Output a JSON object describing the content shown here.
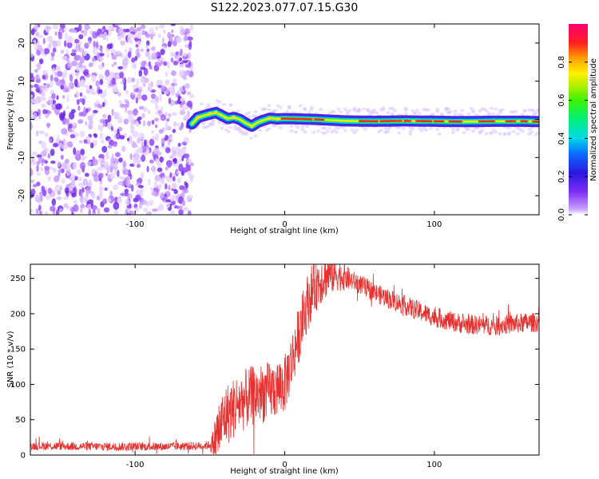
{
  "title": "S122.2023.077.07.15.G30",
  "spectrogram": {
    "xlabel": "Height of straight line (km)",
    "ylabel": "Frequency (Hz)",
    "xlim": [
      -170,
      170
    ],
    "ylim": [
      -25,
      25
    ],
    "xticks": [
      -100,
      0,
      100
    ],
    "yticks": [
      -20,
      -10,
      0,
      10,
      20
    ],
    "noise_region_x": [
      -170,
      -62
    ],
    "colorbar": {
      "label": "Normalized spectral amplitude",
      "range": [
        0.0,
        1.0
      ],
      "ticks": [
        0.0,
        0.2,
        0.4,
        0.6,
        0.8
      ]
    }
  },
  "chart_data": [
    {
      "type": "heatmap",
      "title": "S122.2023.077.07.15.G30",
      "xlabel": "Height of straight line (km)",
      "ylabel": "Frequency (Hz)",
      "xlim": [
        -170,
        170
      ],
      "ylim": [
        -25,
        25
      ],
      "colorbar_label": "Normalized spectral amplitude",
      "colorbar_range": [
        0.0,
        1.0
      ],
      "ridge_x": [
        -62,
        -58,
        -52,
        -46,
        -42,
        -38,
        -34,
        -30,
        -26,
        -22,
        -18,
        -14,
        -10,
        -5,
        0,
        10,
        20,
        30,
        40,
        60,
        80,
        100,
        120,
        140,
        160,
        170
      ],
      "ridge_y": [
        -1.2,
        0.5,
        1.2,
        1.8,
        1.0,
        0.2,
        0.5,
        0.0,
        -1.0,
        -1.8,
        -0.8,
        -0.2,
        0.3,
        0.1,
        0.2,
        0.1,
        0.0,
        -0.2,
        -0.4,
        -0.5,
        -0.4,
        -0.5,
        -0.6,
        -0.5,
        -0.5,
        -0.6
      ]
    },
    {
      "type": "line",
      "xlabel": "Height of straight line (km)",
      "ylabel": "SNR (10 * v/v)",
      "xlim": [
        -170,
        170
      ],
      "ylim": [
        0,
        270
      ],
      "xticks": [
        -100,
        0,
        100
      ],
      "yticks": [
        0,
        50,
        100,
        150,
        200,
        250
      ],
      "envelope_x": [
        -170,
        -120,
        -80,
        -55,
        -48,
        -45,
        -40,
        -30,
        -20,
        -10,
        0,
        5,
        10,
        15,
        20,
        25,
        30,
        35,
        40,
        50,
        60,
        80,
        100,
        120,
        140,
        160,
        170
      ],
      "envelope_y": [
        13,
        12,
        12,
        13,
        15,
        30,
        55,
        75,
        85,
        90,
        100,
        135,
        175,
        215,
        240,
        250,
        256,
        256,
        252,
        242,
        230,
        212,
        195,
        185,
        183,
        187,
        188
      ],
      "noise_amplitude_x": [
        -170,
        -50,
        -45,
        20,
        45,
        170
      ],
      "noise_amplitude_y": [
        6,
        6,
        45,
        40,
        14,
        14
      ],
      "color": "#e8312f"
    }
  ],
  "snr": {
    "xlabel": "Height of straight line (km)",
    "ylabel": "SNR (10 * v/v)",
    "xticks": [
      -100,
      0,
      100
    ],
    "yticks": [
      0,
      50,
      100,
      150,
      200,
      250
    ]
  }
}
